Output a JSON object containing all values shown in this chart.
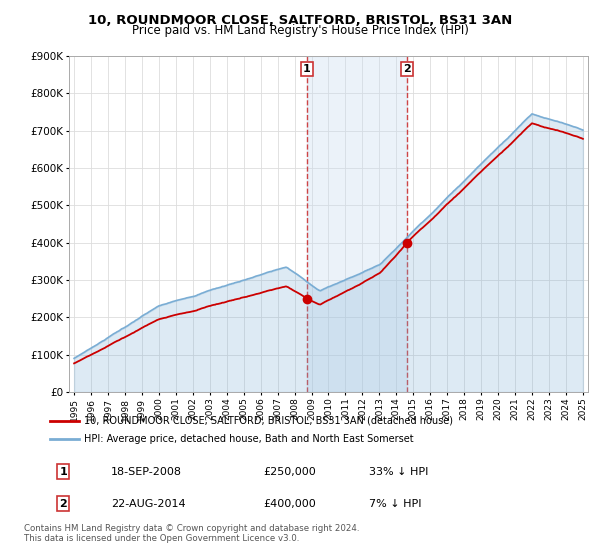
{
  "title1": "10, ROUNDMOOR CLOSE, SALTFORD, BRISTOL, BS31 3AN",
  "title2": "Price paid vs. HM Land Registry's House Price Index (HPI)",
  "ylim": [
    0,
    900000
  ],
  "yticks": [
    0,
    100000,
    200000,
    300000,
    400000,
    500000,
    600000,
    700000,
    800000,
    900000
  ],
  "ytick_labels": [
    "£0",
    "£100K",
    "£200K",
    "£300K",
    "£400K",
    "£500K",
    "£600K",
    "£700K",
    "£800K",
    "£900K"
  ],
  "hpi_color": "#7aadd4",
  "price_color": "#cc0000",
  "transaction1_date": 2008.72,
  "transaction1_price": 250000,
  "transaction2_date": 2014.64,
  "transaction2_price": 400000,
  "shade_color": "#c8dcf0",
  "vline_color": "#cc3333",
  "legend_label1": "10, ROUNDMOOR CLOSE, SALTFORD, BRISTOL, BS31 3AN (detached house)",
  "legend_label2": "HPI: Average price, detached house, Bath and North East Somerset",
  "annotation1_label": "1",
  "annotation1_date_text": "18-SEP-2008",
  "annotation1_price_text": "£250,000",
  "annotation1_hpi_text": "33% ↓ HPI",
  "annotation2_label": "2",
  "annotation2_date_text": "22-AUG-2014",
  "annotation2_price_text": "£400,000",
  "annotation2_hpi_text": "7% ↓ HPI",
  "footer": "Contains HM Land Registry data © Crown copyright and database right 2024.\nThis data is licensed under the Open Government Licence v3.0.",
  "background_color": "#ffffff",
  "grid_color": "#dddddd"
}
